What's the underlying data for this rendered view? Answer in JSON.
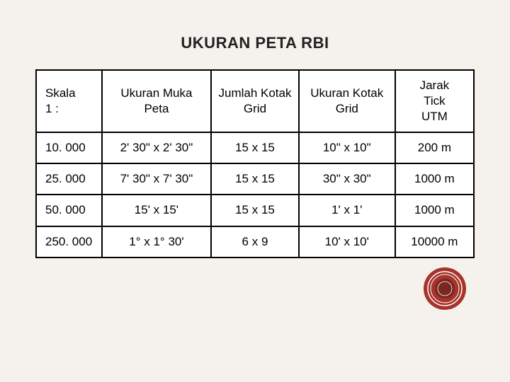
{
  "title": "UKURAN PETA RBI",
  "table": {
    "columns": [
      "Skala\n1 :",
      "Ukuran Muka\nPeta",
      "Jumlah Kotak\nGrid",
      "Ukuran Kotak\nGrid",
      "Jarak\nTick\nUTM"
    ],
    "column_widths_pct": [
      15,
      25,
      20,
      22,
      18
    ],
    "rows": [
      [
        "10. 000",
        "2' 30\" x 2' 30\"",
        "15 x 15",
        "10\" x 10\"",
        "200 m"
      ],
      [
        "25. 000",
        "7' 30\" x 7' 30\"",
        "15 x 15",
        "30\" x 30\"",
        "1000 m"
      ],
      [
        "50. 000",
        "15' x 15'",
        "15 x 15",
        "1' x 1'",
        "1000 m"
      ],
      [
        "250. 000",
        "1° x 1° 30'",
        "6 x 9",
        "10' x 10'",
        "10000 m"
      ]
    ],
    "border_color": "#000000",
    "background_color": "#ffffff",
    "text_color": "#000000",
    "header_fontsize": 17,
    "cell_fontsize": 17
  },
  "page": {
    "background_color": "#f5f1ed",
    "title_color": "#222222",
    "title_fontsize": 22
  },
  "seal": {
    "outer_color": "#a6342a",
    "inner_color": "#a6342a",
    "ring_color": "#ffffff"
  }
}
